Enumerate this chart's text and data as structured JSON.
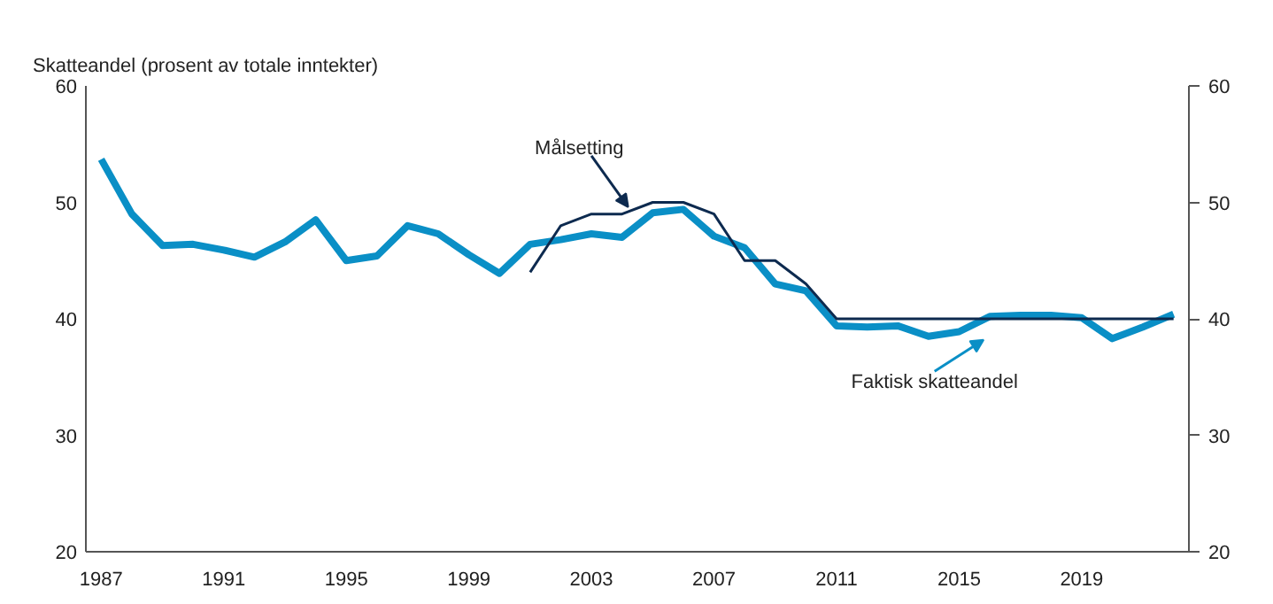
{
  "chart_data": {
    "type": "line",
    "ylabel": "Skatteandel (prosent av totale inntekter)",
    "x": [
      1987,
      1988,
      1989,
      1990,
      1991,
      1992,
      1993,
      1994,
      1995,
      1996,
      1997,
      1998,
      1999,
      2000,
      2001,
      2002,
      2003,
      2004,
      2005,
      2006,
      2007,
      2008,
      2009,
      2010,
      2011,
      2012,
      2013,
      2014,
      2015,
      2016,
      2017,
      2018,
      2019,
      2020,
      2021,
      2022
    ],
    "series": [
      {
        "name": "Faktisk skatteandel",
        "color": "#0a8fc6",
        "values": [
          53.7,
          49,
          46.3,
          46.4,
          45.9,
          45.3,
          46.6,
          48.5,
          45,
          45.4,
          48,
          47.3,
          45.5,
          43.9,
          46.4,
          46.8,
          47.3,
          47,
          49.1,
          49.4,
          47.1,
          46.1,
          43,
          42.4,
          39.4,
          39.3,
          39.4,
          38.5,
          38.9,
          40.2,
          40.3,
          40.3,
          40.1,
          38.3,
          39.3,
          40.4
        ]
      },
      {
        "name": "Målsetting",
        "color": "#0d2a4f",
        "x": [
          2001,
          2002,
          2003,
          2004,
          2005,
          2006,
          2007,
          2008,
          2009,
          2010,
          2011,
          2012,
          2013,
          2014,
          2015,
          2016,
          2017,
          2018,
          2019,
          2020,
          2021,
          2022
        ],
        "values": [
          44,
          48,
          49,
          49,
          50,
          50,
          49,
          45,
          45,
          43,
          40,
          40,
          40,
          40,
          40,
          40,
          40,
          40,
          40,
          40,
          40,
          40
        ]
      }
    ],
    "xlim": [
      1986.5,
      2022.5
    ],
    "xticks": [
      1987,
      1991,
      1995,
      1999,
      2003,
      2007,
      2011,
      2015,
      2019
    ],
    "ylim": [
      20,
      60
    ],
    "yticks": [
      20,
      30,
      40,
      50,
      60
    ],
    "y2lim": [
      20,
      60
    ],
    "y2ticks": [
      20,
      30,
      40,
      50,
      60
    ],
    "grid": false,
    "marker": "none",
    "line_style": "solid"
  }
}
